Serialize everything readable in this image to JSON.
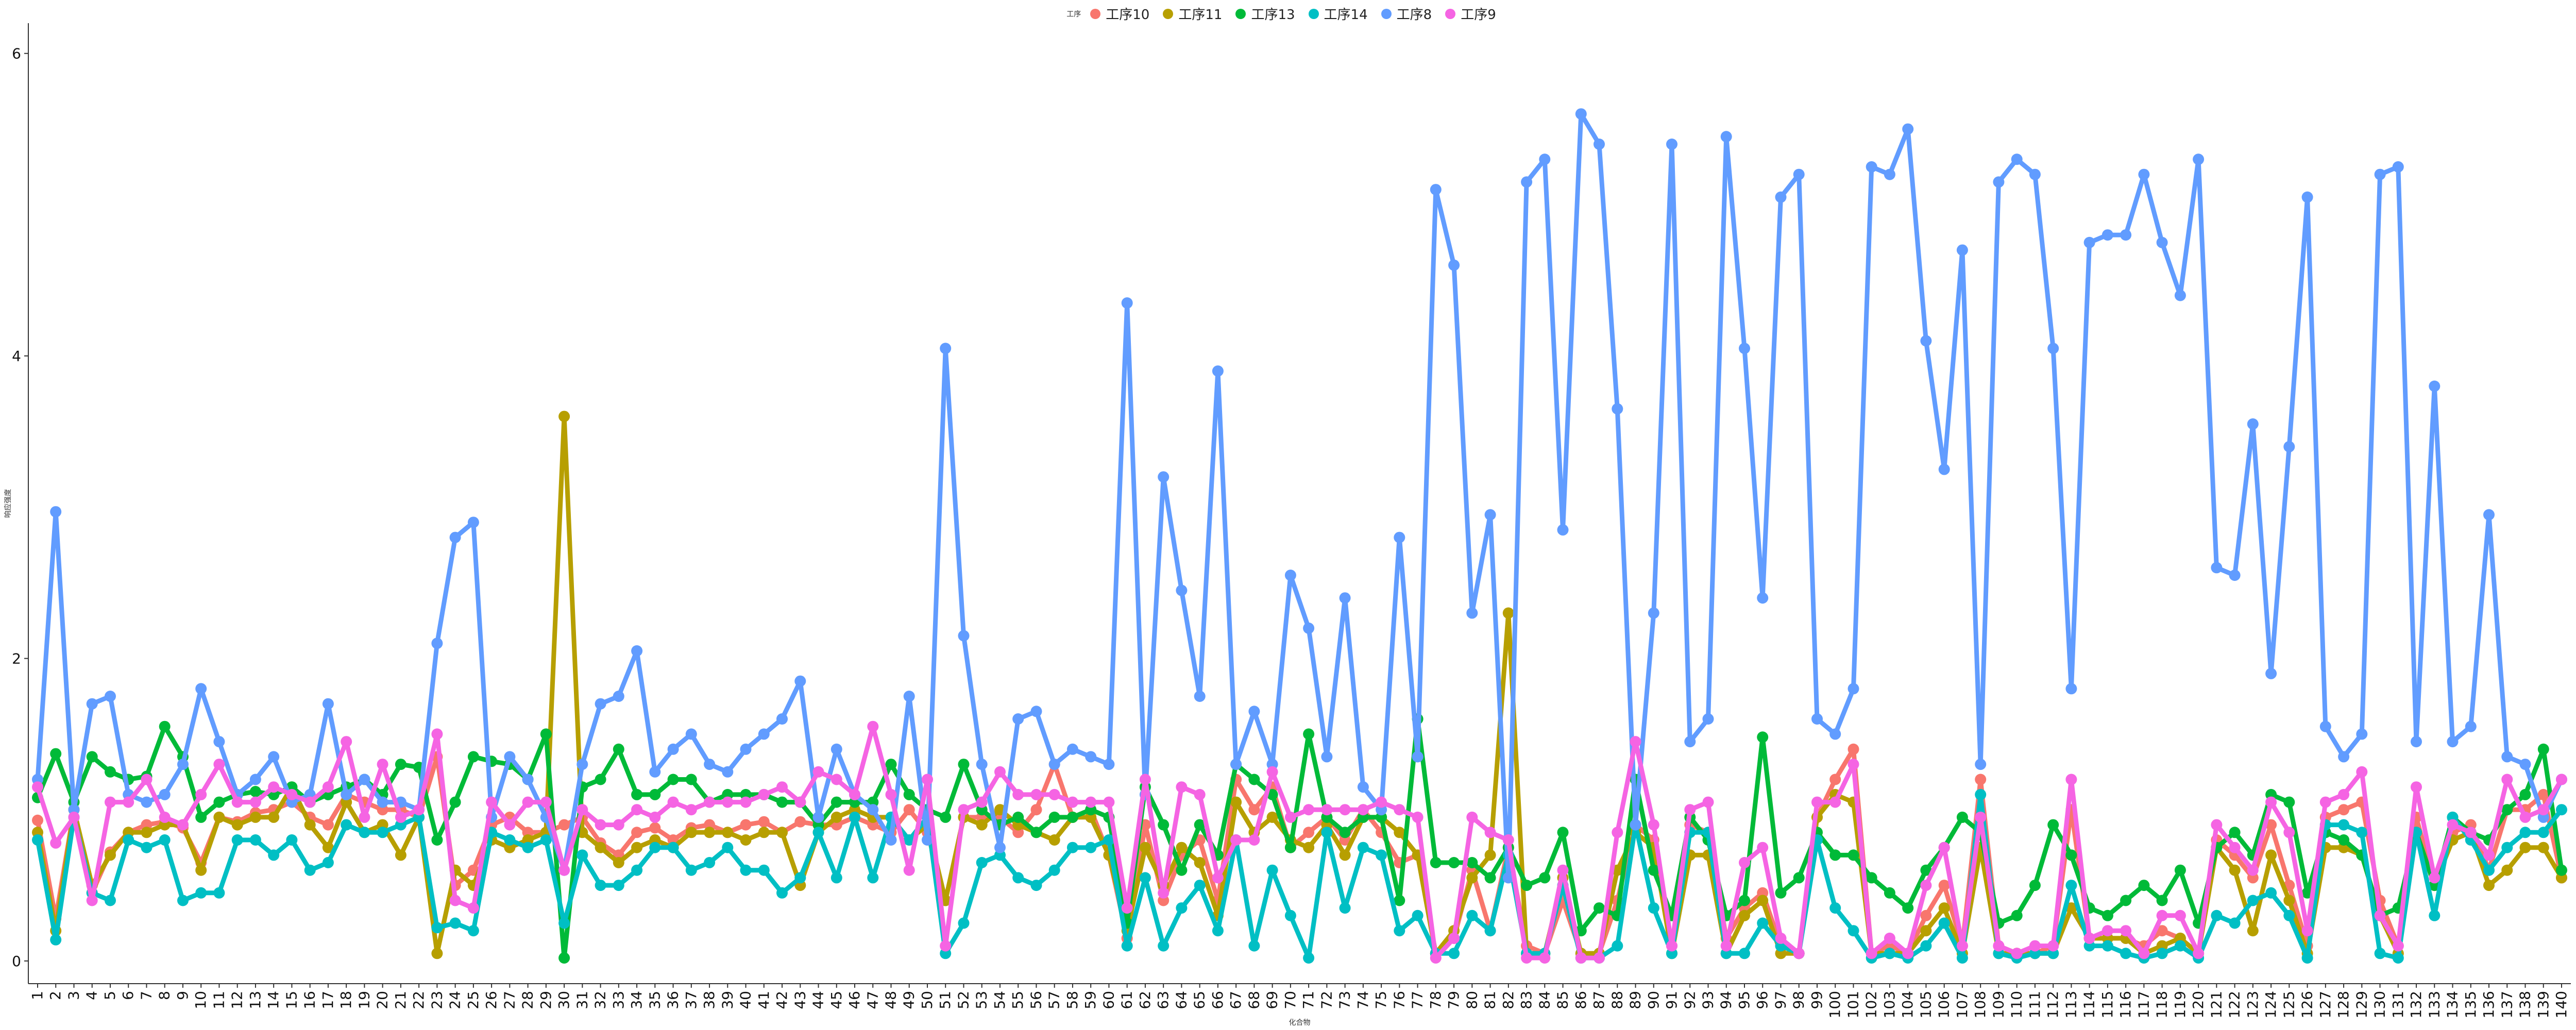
{
  "chart_data": {
    "type": "line",
    "title": "",
    "xlabel": "化合物",
    "ylabel": "响应强度",
    "legend_title": "工序",
    "legend_position": "top",
    "grid": false,
    "ylim": [
      -0.15,
      6.2
    ],
    "yticks": [
      0,
      2,
      4,
      6
    ],
    "x": [
      1,
      2,
      3,
      4,
      5,
      6,
      7,
      8,
      9,
      10,
      11,
      12,
      13,
      14,
      15,
      16,
      17,
      18,
      19,
      20,
      21,
      22,
      23,
      24,
      25,
      26,
      27,
      28,
      29,
      30,
      31,
      32,
      33,
      34,
      35,
      36,
      37,
      38,
      39,
      40,
      41,
      42,
      43,
      44,
      45,
      46,
      47,
      48,
      49,
      50,
      51,
      52,
      53,
      54,
      55,
      56,
      57,
      58,
      59,
      60,
      61,
      62,
      63,
      64,
      65,
      66,
      67,
      68,
      69,
      70,
      71,
      72,
      73,
      74,
      75,
      76,
      77,
      78,
      79,
      80,
      81,
      82,
      83,
      84,
      85,
      86,
      87,
      88,
      89,
      90,
      91,
      92,
      93,
      94,
      95,
      96,
      97,
      98,
      99,
      100,
      101,
      102,
      103,
      104,
      105,
      106,
      107,
      108,
      109,
      110,
      111,
      112,
      113,
      114,
      115,
      116,
      117,
      118,
      119,
      120,
      121,
      122,
      123,
      124,
      125,
      126,
      127,
      128,
      129,
      130,
      131,
      132,
      133,
      134,
      135,
      136,
      137,
      138,
      139,
      140
    ],
    "series": [
      {
        "name": "工序10",
        "color": "#F8766D",
        "values": [
          0.93,
          0.28,
          1.0,
          0.45,
          0.72,
          0.85,
          0.9,
          0.92,
          0.88,
          0.65,
          0.95,
          0.92,
          0.98,
          1.0,
          1.05,
          0.95,
          0.9,
          1.1,
          1.05,
          1.0,
          1.0,
          0.95,
          1.35,
          0.5,
          0.6,
          0.9,
          0.95,
          0.85,
          0.85,
          0.9,
          0.95,
          0.78,
          0.7,
          0.85,
          0.88,
          0.8,
          0.88,
          0.9,
          0.85,
          0.9,
          0.92,
          0.85,
          0.92,
          0.9,
          0.9,
          0.95,
          0.9,
          0.85,
          1.0,
          0.85,
          0.4,
          0.95,
          0.95,
          0.95,
          0.85,
          1.0,
          1.3,
          0.95,
          1.0,
          0.7,
          0.15,
          0.9,
          0.4,
          0.7,
          0.8,
          0.4,
          1.2,
          1.0,
          1.15,
          0.75,
          0.85,
          0.95,
          0.8,
          1.0,
          0.85,
          0.65,
          0.7,
          0.05,
          0.15,
          0.6,
          0.2,
          0.75,
          0.1,
          0.05,
          0.4,
          0.05,
          0.05,
          0.4,
          0.9,
          0.8,
          0.1,
          0.9,
          0.85,
          0.15,
          0.35,
          0.45,
          0.1,
          0.05,
          0.95,
          1.2,
          1.4,
          0.05,
          0.1,
          0.05,
          0.3,
          0.5,
          0.1,
          1.2,
          0.1,
          0.05,
          0.05,
          0.1,
          1.0,
          0.15,
          0.15,
          0.15,
          0.1,
          0.2,
          0.15,
          0.05,
          0.8,
          0.7,
          0.55,
          0.9,
          0.5,
          0.1,
          0.95,
          1.0,
          1.05,
          0.4,
          0.1,
          0.95,
          0.5,
          0.85,
          0.9,
          0.6,
          1.0,
          1.0,
          1.1,
          0.55
        ]
      },
      {
        "name": "工序11",
        "color": "#B79F00",
        "values": [
          0.85,
          0.2,
          1.0,
          0.5,
          0.7,
          0.85,
          0.85,
          0.9,
          0.9,
          0.6,
          0.95,
          0.9,
          0.95,
          0.95,
          1.15,
          0.9,
          0.75,
          1.05,
          0.85,
          0.9,
          0.7,
          0.95,
          0.05,
          0.6,
          0.5,
          0.8,
          0.75,
          0.8,
          0.85,
          3.6,
          0.85,
          0.75,
          0.65,
          0.75,
          0.8,
          0.75,
          0.85,
          0.85,
          0.85,
          0.8,
          0.85,
          0.85,
          0.5,
          0.85,
          0.95,
          1.0,
          0.95,
          0.95,
          0.8,
          0.9,
          0.4,
          0.95,
          0.9,
          1.0,
          0.9,
          0.85,
          0.8,
          0.95,
          0.95,
          0.7,
          0.2,
          0.75,
          0.5,
          0.75,
          0.65,
          0.3,
          1.05,
          0.85,
          0.95,
          0.8,
          0.75,
          0.9,
          0.7,
          0.95,
          0.95,
          0.85,
          0.7,
          0.05,
          0.2,
          0.55,
          0.7,
          2.3,
          0.05,
          0.05,
          0.55,
          0.05,
          0.05,
          0.6,
          0.85,
          0.75,
          0.05,
          0.7,
          0.7,
          0.05,
          0.3,
          0.4,
          0.05,
          0.05,
          0.95,
          1.1,
          1.05,
          0.05,
          0.05,
          0.05,
          0.2,
          0.35,
          0.05,
          0.75,
          0.05,
          0.05,
          0.05,
          0.05,
          0.35,
          0.15,
          0.15,
          0.15,
          0.05,
          0.1,
          0.15,
          0.05,
          0.75,
          0.6,
          0.2,
          0.7,
          0.4,
          0.05,
          0.75,
          0.75,
          0.7,
          0.3,
          0.05,
          0.85,
          0.5,
          0.8,
          0.85,
          0.5,
          0.6,
          0.75,
          0.75,
          0.55
        ]
      },
      {
        "name": "工序13",
        "color": "#00BA38",
        "values": [
          1.08,
          1.37,
          1.05,
          1.35,
          1.25,
          1.2,
          1.22,
          1.55,
          1.35,
          0.95,
          1.05,
          1.1,
          1.12,
          1.1,
          1.15,
          1.05,
          1.1,
          1.15,
          1.2,
          1.1,
          1.3,
          1.28,
          0.8,
          1.05,
          1.35,
          1.32,
          1.3,
          1.2,
          1.5,
          0.02,
          1.15,
          1.2,
          1.4,
          1.1,
          1.1,
          1.2,
          1.2,
          1.05,
          1.1,
          1.1,
          1.1,
          1.05,
          1.05,
          0.9,
          1.05,
          1.05,
          1.05,
          1.3,
          1.1,
          1.0,
          0.95,
          1.3,
          1.0,
          0.9,
          0.95,
          0.85,
          0.95,
          0.95,
          1.0,
          0.95,
          0.25,
          1.15,
          0.9,
          0.6,
          0.9,
          0.7,
          1.3,
          1.2,
          1.1,
          0.75,
          1.5,
          0.95,
          0.85,
          0.95,
          0.95,
          0.4,
          1.6,
          0.65,
          0.65,
          0.65,
          0.55,
          0.75,
          0.5,
          0.55,
          0.85,
          0.2,
          0.35,
          0.3,
          1.2,
          0.6,
          0.3,
          0.95,
          0.8,
          0.3,
          0.4,
          1.48,
          0.45,
          0.55,
          0.85,
          0.7,
          0.7,
          0.55,
          0.45,
          0.35,
          0.6,
          0.75,
          0.95,
          0.85,
          0.25,
          0.3,
          0.5,
          0.9,
          0.7,
          0.35,
          0.3,
          0.4,
          0.5,
          0.4,
          0.6,
          0.25,
          0.75,
          0.85,
          0.7,
          1.1,
          1.05,
          0.45,
          0.85,
          0.8,
          0.7,
          0.3,
          0.35,
          0.85,
          0.5,
          0.95,
          0.85,
          0.8,
          1.0,
          1.1,
          1.4,
          0.6
        ]
      },
      {
        "name": "工序14",
        "color": "#00BFC4",
        "values": [
          0.8,
          0.14,
          0.95,
          0.45,
          0.4,
          0.8,
          0.75,
          0.8,
          0.4,
          0.45,
          0.45,
          0.8,
          0.8,
          0.7,
          0.8,
          0.6,
          0.65,
          0.9,
          0.85,
          0.85,
          0.9,
          0.95,
          0.22,
          0.25,
          0.2,
          0.85,
          0.8,
          0.75,
          0.8,
          0.25,
          0.7,
          0.5,
          0.5,
          0.6,
          0.75,
          0.75,
          0.6,
          0.65,
          0.75,
          0.6,
          0.6,
          0.45,
          0.55,
          0.85,
          0.55,
          0.95,
          0.55,
          0.95,
          0.8,
          0.95,
          0.05,
          0.25,
          0.65,
          0.7,
          0.55,
          0.5,
          0.6,
          0.75,
          0.75,
          0.8,
          0.1,
          0.55,
          0.1,
          0.35,
          0.5,
          0.2,
          0.8,
          0.1,
          0.6,
          0.3,
          0.02,
          0.85,
          0.35,
          0.75,
          0.7,
          0.2,
          0.3,
          0.05,
          0.05,
          0.3,
          0.2,
          0.7,
          0.05,
          0.05,
          0.5,
          0.02,
          0.02,
          0.1,
          0.9,
          0.35,
          0.05,
          0.85,
          0.85,
          0.05,
          0.05,
          0.25,
          0.1,
          0.05,
          0.8,
          0.35,
          0.2,
          0.02,
          0.05,
          0.02,
          0.1,
          0.25,
          0.02,
          1.1,
          0.05,
          0.02,
          0.05,
          0.05,
          0.5,
          0.1,
          0.1,
          0.05,
          0.02,
          0.05,
          0.1,
          0.02,
          0.3,
          0.25,
          0.4,
          0.45,
          0.3,
          0.02,
          0.9,
          0.9,
          0.85,
          0.05,
          0.02,
          0.85,
          0.3,
          0.95,
          0.8,
          0.6,
          0.75,
          0.85,
          0.85,
          1.0
        ]
      },
      {
        "name": "工序8",
        "color": "#619CFF",
        "values": [
          1.2,
          2.97,
          1.0,
          1.7,
          1.75,
          1.1,
          1.05,
          1.1,
          1.3,
          1.8,
          1.45,
          1.1,
          1.2,
          1.35,
          1.05,
          1.1,
          1.7,
          1.1,
          1.2,
          1.05,
          1.05,
          1.0,
          2.1,
          2.8,
          2.9,
          0.95,
          1.35,
          1.2,
          0.95,
          0.6,
          1.3,
          1.7,
          1.75,
          2.05,
          1.25,
          1.4,
          1.5,
          1.3,
          1.25,
          1.4,
          1.5,
          1.6,
          1.85,
          0.95,
          1.4,
          1.1,
          1.0,
          0.8,
          1.75,
          0.8,
          4.05,
          2.15,
          1.3,
          0.75,
          1.6,
          1.65,
          1.3,
          1.4,
          1.35,
          1.3,
          4.35,
          1.1,
          3.2,
          2.45,
          1.75,
          3.9,
          1.3,
          1.65,
          1.3,
          2.55,
          2.2,
          1.35,
          2.4,
          1.15,
          1.0,
          2.8,
          1.35,
          5.1,
          4.6,
          2.3,
          2.95,
          0.55,
          5.15,
          5.3,
          2.85,
          5.6,
          5.4,
          3.65,
          0.9,
          2.3,
          5.4,
          1.45,
          1.6,
          5.45,
          4.05,
          2.4,
          5.05,
          5.2,
          1.6,
          1.5,
          1.8,
          5.25,
          5.2,
          5.5,
          4.1,
          3.25,
          4.7,
          1.3,
          5.15,
          5.3,
          5.2,
          4.05,
          1.8,
          4.75,
          4.8,
          4.8,
          5.2,
          4.75,
          4.4,
          5.3,
          2.6,
          2.55,
          3.55,
          1.9,
          3.4,
          5.05,
          1.55,
          1.35,
          1.5,
          5.2,
          5.25,
          1.45,
          3.8,
          1.45,
          1.55,
          2.95,
          1.35,
          1.3,
          0.95,
          1.2
        ]
      },
      {
        "name": "工序9",
        "color": "#F564E3",
        "values": [
          1.15,
          0.78,
          0.95,
          0.4,
          1.05,
          1.05,
          1.2,
          0.95,
          0.9,
          1.1,
          1.3,
          1.05,
          1.05,
          1.15,
          1.1,
          1.05,
          1.15,
          1.45,
          0.95,
          1.3,
          0.95,
          1.0,
          1.5,
          0.4,
          0.35,
          1.05,
          0.9,
          1.05,
          1.05,
          0.6,
          1.0,
          0.9,
          0.9,
          1.0,
          0.95,
          1.05,
          1.0,
          1.05,
          1.05,
          1.05,
          1.1,
          1.15,
          1.05,
          1.25,
          1.2,
          1.1,
          1.55,
          1.1,
          0.6,
          1.2,
          0.1,
          1.0,
          1.05,
          1.25,
          1.1,
          1.1,
          1.1,
          1.05,
          1.05,
          1.05,
          0.35,
          1.2,
          0.45,
          1.15,
          1.1,
          0.55,
          0.8,
          0.8,
          1.25,
          0.95,
          1.0,
          1.0,
          1.0,
          1.0,
          1.05,
          1.0,
          0.95,
          0.02,
          0.15,
          0.95,
          0.85,
          0.8,
          0.02,
          0.02,
          0.6,
          0.02,
          0.02,
          0.85,
          1.45,
          0.9,
          0.1,
          1.0,
          1.05,
          0.1,
          0.65,
          0.75,
          0.15,
          0.05,
          1.05,
          1.05,
          1.3,
          0.05,
          0.15,
          0.05,
          0.5,
          0.75,
          0.1,
          0.95,
          0.1,
          0.05,
          0.1,
          0.1,
          1.2,
          0.15,
          0.2,
          0.2,
          0.05,
          0.3,
          0.3,
          0.05,
          0.9,
          0.75,
          0.6,
          1.05,
          0.85,
          0.2,
          1.05,
          1.1,
          1.25,
          0.3,
          0.1,
          1.15,
          0.55,
          0.9,
          0.85,
          0.7,
          1.2,
          0.95,
          1.0,
          1.2
        ]
      }
    ]
  }
}
